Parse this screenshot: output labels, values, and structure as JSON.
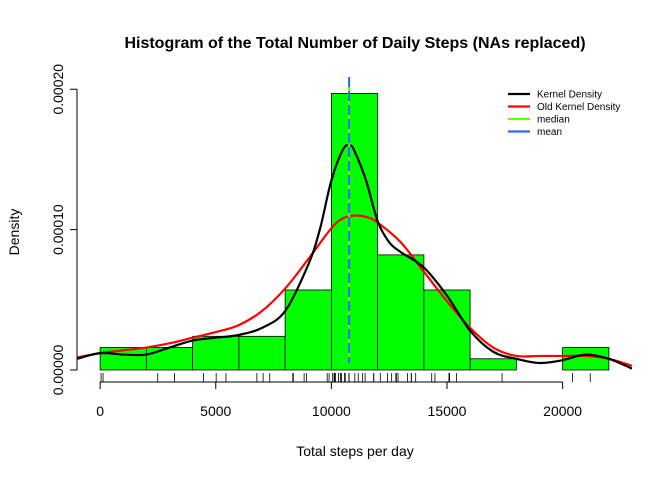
{
  "chart_data": {
    "type": "histogram",
    "title": "Histogram of the Total Number of Daily Steps (NAs replaced)",
    "xlabel": "Total steps per day",
    "ylabel": "Density",
    "xlim": [
      -1000,
      23000
    ],
    "ylim": [
      0,
      0.0002
    ],
    "xticks": [
      0,
      5000,
      10000,
      15000,
      20000
    ],
    "xtick_labels": [
      "0",
      "5000",
      "10000",
      "15000",
      "20000"
    ],
    "yticks": [
      0,
      0.0001,
      0.0002
    ],
    "ytick_labels": [
      "0.00000",
      "0.00010",
      "0.00020"
    ],
    "bar_color": "#00ff00",
    "bins": [
      {
        "start": 0,
        "end": 2000,
        "density": 1.6e-05
      },
      {
        "start": 2000,
        "end": 4000,
        "density": 1.6e-05
      },
      {
        "start": 4000,
        "end": 6000,
        "density": 2.4e-05
      },
      {
        "start": 6000,
        "end": 8000,
        "density": 2.4e-05
      },
      {
        "start": 8000,
        "end": 10000,
        "density": 5.7e-05
      },
      {
        "start": 10000,
        "end": 12000,
        "density": 0.000197
      },
      {
        "start": 12000,
        "end": 14000,
        "density": 8.2e-05
      },
      {
        "start": 14000,
        "end": 16000,
        "density": 5.7e-05
      },
      {
        "start": 16000,
        "end": 18000,
        "density": 8e-06
      },
      {
        "start": 18000,
        "end": 20000,
        "density": 0
      },
      {
        "start": 20000,
        "end": 22000,
        "density": 1.6e-05
      }
    ],
    "series": [
      {
        "name": "Kernel Density",
        "color": "#000000",
        "x": [
          -1000,
          0,
          1000,
          2000,
          3000,
          4000,
          5000,
          6000,
          7000,
          8000,
          9000,
          9500,
          10000,
          10500,
          10800,
          11000,
          11500,
          12000,
          12500,
          13000,
          14000,
          15000,
          16000,
          17000,
          18000,
          19000,
          20000,
          21000,
          22000,
          23000
        ],
        "y": [
          8e-06,
          1.2e-05,
          1.1e-05,
          1.1e-05,
          1.6e-05,
          2.1e-05,
          2.3e-05,
          2.5e-05,
          3e-05,
          4.2e-05,
          7.5e-05,
          0.0001,
          0.000135,
          0.000157,
          0.00016,
          0.000156,
          0.000135,
          0.000106,
          9.1e-05,
          8.4e-05,
          7.3e-05,
          5.3e-05,
          2.8e-05,
          1.3e-05,
          8e-06,
          5e-06,
          7e-06,
          1.1e-05,
          8e-06,
          1e-06
        ]
      },
      {
        "name": "Old Kernel Density",
        "color": "#ff0000",
        "x": [
          -1000,
          0,
          1000,
          2000,
          3000,
          4000,
          5000,
          6000,
          7000,
          8000,
          9000,
          10000,
          10500,
          11000,
          11500,
          12000,
          13000,
          14000,
          15000,
          16000,
          17000,
          18000,
          19000,
          20000,
          21000,
          22000,
          23000
        ],
        "y": [
          9e-06,
          1.2e-05,
          1.4e-05,
          1.6e-05,
          1.9e-05,
          2.3e-05,
          2.7e-05,
          3.2e-05,
          4.2e-05,
          5.8e-05,
          7.9e-05,
          0.000101,
          0.000108,
          0.00011,
          0.000109,
          0.000105,
          9.1e-05,
          7e-05,
          4.9e-05,
          3e-05,
          1.6e-05,
          1e-05,
          1e-05,
          1e-05,
          1e-05,
          8e-06,
          3e-06
        ]
      }
    ],
    "vlines": [
      {
        "name": "median",
        "value": 10766,
        "color": "#66ff00"
      },
      {
        "name": "mean",
        "value": 10766,
        "color": "#3366ff"
      }
    ],
    "rug": [
      41,
      126,
      2492,
      3219,
      4472,
      5018,
      5441,
      6778,
      7047,
      7336,
      8334,
      8355,
      8821,
      8918,
      9819,
      9900,
      10056,
      10119,
      10139,
      10183,
      10304,
      10395,
      10439,
      10571,
      10600,
      10765,
      10766,
      10766,
      10766,
      10766,
      10766,
      10766,
      10766,
      10766,
      11015,
      11162,
      11352,
      11458,
      11829,
      11834,
      12116,
      12426,
      12608,
      12787,
      12811,
      12883,
      13294,
      13452,
      13460,
      13646,
      14339,
      14478,
      15084,
      15098,
      15110,
      15414,
      17382,
      20427,
      21194
    ],
    "legend": {
      "position": "top-right",
      "entries": [
        {
          "label": "Kernel Density",
          "color": "#000000"
        },
        {
          "label": "Old Kernel Density",
          "color": "#ff0000"
        },
        {
          "label": "median",
          "color": "#66ff00"
        },
        {
          "label": "mean",
          "color": "#3366ff"
        }
      ]
    }
  }
}
